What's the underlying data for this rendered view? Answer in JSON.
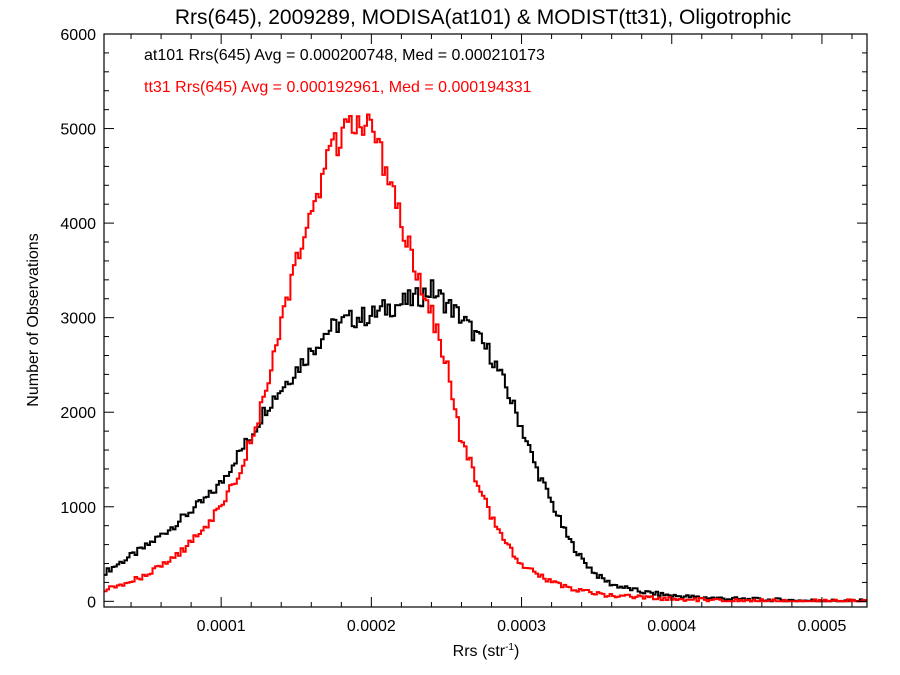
{
  "chart_data": {
    "type": "line",
    "title": "Rrs(645), 2009289, MODISA(at101) & MODIST(tt31), Oligotrophic",
    "xlabel_main": "Rrs (str",
    "xlabel_sup": "-1",
    "xlabel_tail": ")",
    "ylabel": "Number of Observations",
    "xlim": [
      2.2e-05,
      0.00053
    ],
    "ylim": [
      -60,
      6000
    ],
    "xticks": [
      0.0001,
      0.0002,
      0.0003,
      0.0004,
      0.0005
    ],
    "xtick_labels": [
      "0.0001",
      "0.0002",
      "0.0003",
      "0.0004",
      "0.0005"
    ],
    "yticks": [
      0,
      1000,
      2000,
      3000,
      4000,
      5000,
      6000
    ],
    "ytick_labels": [
      "0",
      "1000",
      "2000",
      "3000",
      "4000",
      "5000",
      "6000"
    ],
    "grid": false,
    "legend_placement": "top-left",
    "series": [
      {
        "name": "at101",
        "color": "#000000",
        "annotation": "at101 Rrs(645) Avg = 0.000200748, Med = 0.000210173",
        "x": [
          2.2e-05,
          3e-05,
          4e-05,
          5e-05,
          6e-05,
          7e-05,
          8e-05,
          9e-05,
          0.0001,
          0.00011,
          0.00012,
          0.00013,
          0.00014,
          0.00015,
          0.00016,
          0.00017,
          0.00018,
          0.00019,
          0.0002,
          0.00021,
          0.00022,
          0.00023,
          0.00024,
          0.00025,
          0.00026,
          0.00027,
          0.00028,
          0.00029,
          0.0003,
          0.00031,
          0.00032,
          0.00033,
          0.00034,
          0.00035,
          0.00036,
          0.00038,
          0.0004,
          0.00042,
          0.00045,
          0.00048,
          0.0005,
          0.00053
        ],
        "y": [
          300,
          380,
          480,
          580,
          700,
          820,
          960,
          1080,
          1250,
          1520,
          1750,
          2050,
          2250,
          2450,
          2650,
          2850,
          2950,
          3000,
          3020,
          3100,
          3150,
          3200,
          3300,
          3150,
          3000,
          2800,
          2600,
          2250,
          1850,
          1400,
          1050,
          700,
          450,
          280,
          180,
          100,
          60,
          40,
          20,
          10,
          5,
          0
        ]
      },
      {
        "name": "tt31",
        "color": "#ff0000",
        "annotation": "tt31 Rrs(645) Avg = 0.000192961, Med = 0.000194331",
        "x": [
          2.2e-05,
          3e-05,
          4e-05,
          5e-05,
          6e-05,
          7e-05,
          8e-05,
          9e-05,
          0.0001,
          0.00011,
          0.00012,
          0.00013,
          0.00014,
          0.00015,
          0.00016,
          0.00017,
          0.00018,
          0.000185,
          0.00019,
          0.000195,
          0.0002,
          0.00021,
          0.00022,
          0.00023,
          0.00024,
          0.00025,
          0.00026,
          0.00027,
          0.00028,
          0.00029,
          0.0003,
          0.00031,
          0.00032,
          0.00033,
          0.00034,
          0.00035,
          0.00036,
          0.00038,
          0.0004,
          0.00042,
          0.00045,
          0.0005,
          0.00053
        ],
        "y": [
          120,
          150,
          210,
          280,
          370,
          480,
          620,
          800,
          1000,
          1300,
          1700,
          2200,
          2900,
          3550,
          4100,
          4600,
          4950,
          5050,
          5000,
          5050,
          4950,
          4600,
          4000,
          3500,
          3050,
          2500,
          1700,
          1300,
          900,
          600,
          400,
          300,
          200,
          150,
          110,
          80,
          60,
          40,
          25,
          15,
          5,
          0,
          0
        ]
      }
    ]
  }
}
